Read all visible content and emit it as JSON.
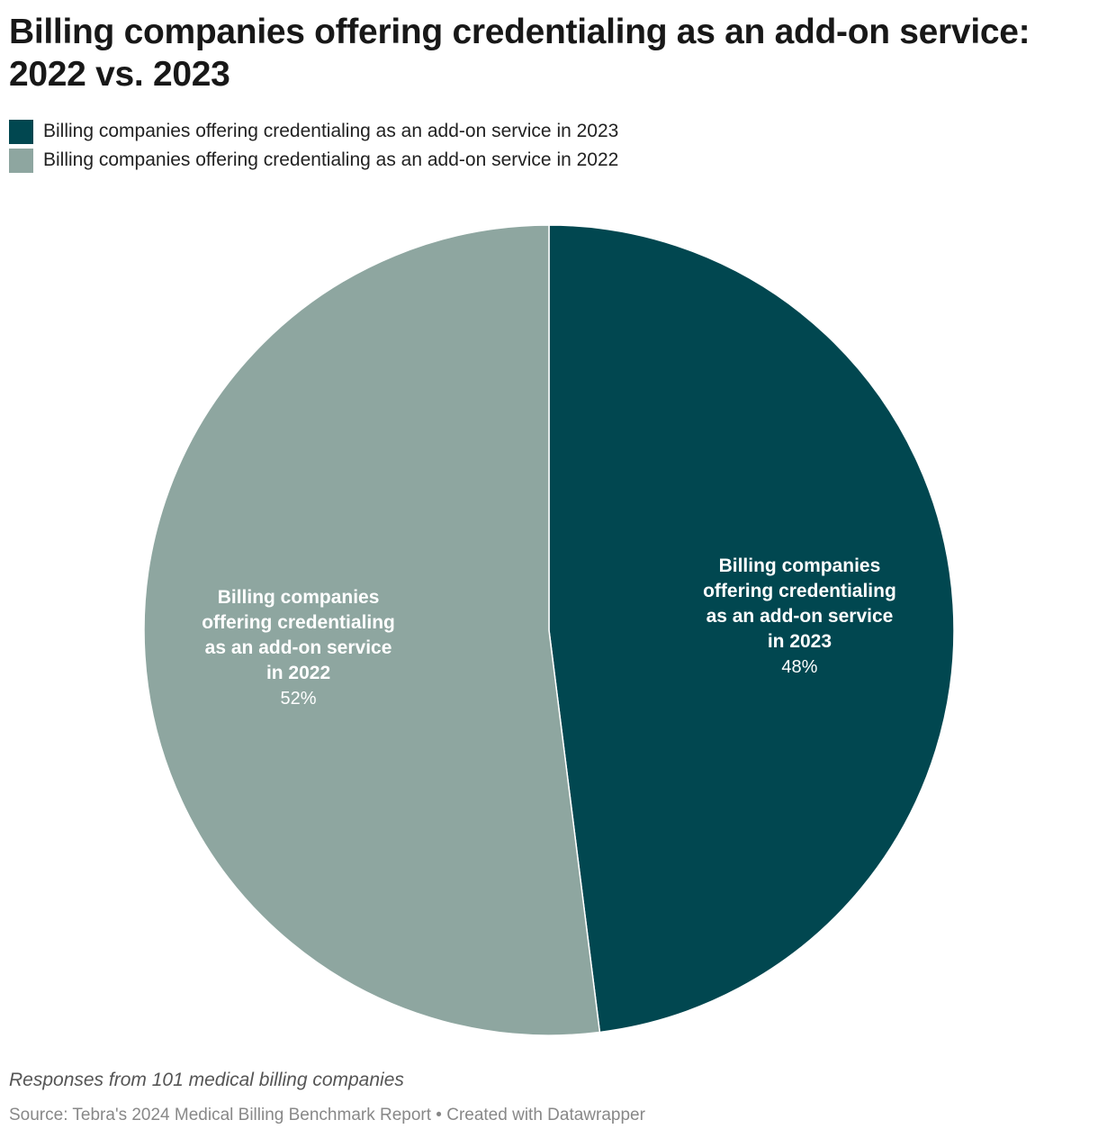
{
  "chart_data": {
    "type": "pie",
    "title": "Billing companies offering credentialing as an add-on service: 2022 vs. 2023",
    "legend_position": "top-left",
    "slices": [
      {
        "name": "Billing companies offering credentialing as an add-on service in 2023",
        "label_lines": [
          "Billing companies",
          "offering credentialing",
          "as an add-on service",
          "in 2023"
        ],
        "value": 48,
        "value_label": "48%",
        "color": "#014750"
      },
      {
        "name": "Billing companies offering credentialing as an add-on service in 2022",
        "label_lines": [
          "Billing companies",
          "offering credentialing",
          "as an add-on service",
          "in 2022"
        ],
        "value": 52,
        "value_label": "52%",
        "color": "#8ea6a0"
      }
    ]
  },
  "notes": "Responses from 101 medical billing companies",
  "source": "Source: Tebra's 2024 Medical Billing Benchmark Report • Created with Datawrapper"
}
